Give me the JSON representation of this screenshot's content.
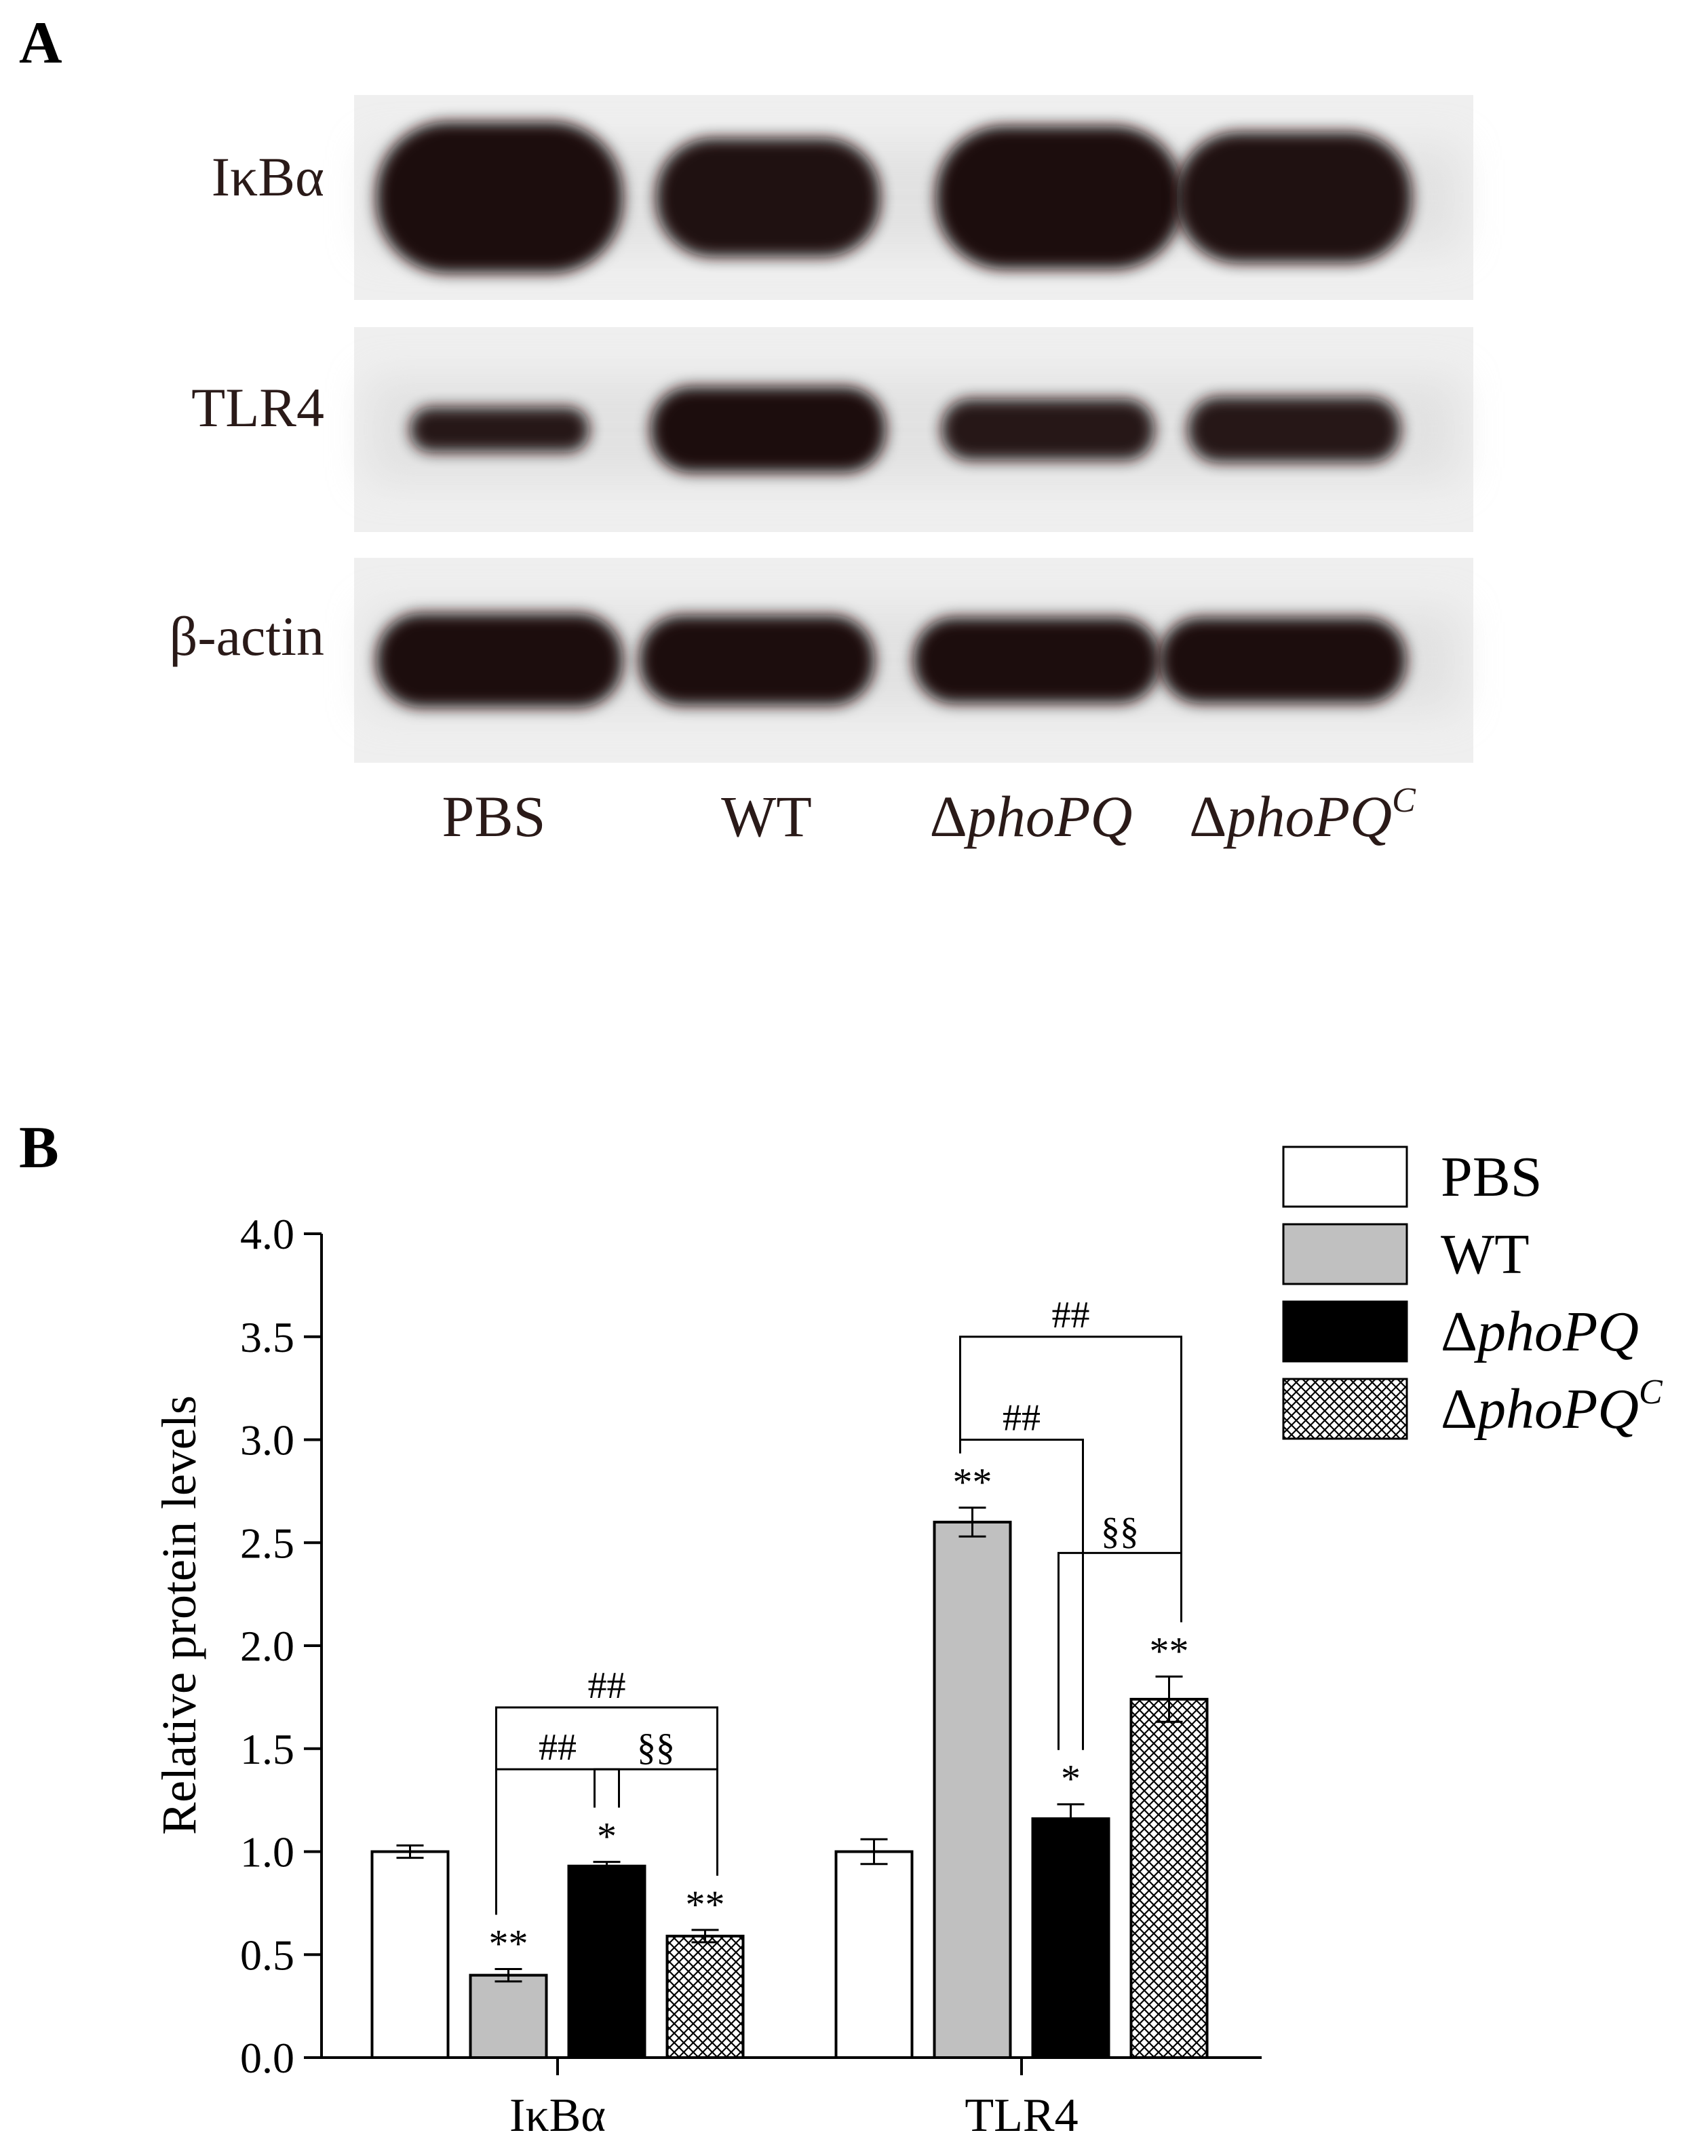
{
  "panels": {
    "a_label": "A",
    "b_label": "B"
  },
  "blot": {
    "rows": [
      {
        "label_main": "Iκ",
        "label_tail": "Bα",
        "bands": [
          {
            "cx": 0.13,
            "w": 0.22,
            "h": 0.74,
            "alpha": 1.0
          },
          {
            "cx": 0.37,
            "w": 0.2,
            "h": 0.58,
            "alpha": 0.98
          },
          {
            "cx": 0.63,
            "w": 0.22,
            "h": 0.7,
            "alpha": 1.0
          },
          {
            "cx": 0.84,
            "w": 0.21,
            "h": 0.64,
            "alpha": 0.98
          }
        ]
      },
      {
        "label_main": "TLR4",
        "label_tail": "",
        "bands": [
          {
            "cx": 0.13,
            "w": 0.16,
            "h": 0.22,
            "alpha": 0.95
          },
          {
            "cx": 0.37,
            "w": 0.21,
            "h": 0.42,
            "alpha": 1.0
          },
          {
            "cx": 0.62,
            "w": 0.19,
            "h": 0.3,
            "alpha": 0.95
          },
          {
            "cx": 0.84,
            "w": 0.19,
            "h": 0.32,
            "alpha": 0.95
          }
        ]
      },
      {
        "label_main": "β-actin",
        "label_tail": "",
        "bands": [
          {
            "cx": 0.13,
            "w": 0.22,
            "h": 0.46,
            "alpha": 1.0
          },
          {
            "cx": 0.36,
            "w": 0.21,
            "h": 0.44,
            "alpha": 1.0
          },
          {
            "cx": 0.61,
            "w": 0.22,
            "h": 0.42,
            "alpha": 1.0
          },
          {
            "cx": 0.83,
            "w": 0.22,
            "h": 0.42,
            "alpha": 1.0
          }
        ]
      }
    ],
    "lane_labels": [
      {
        "prefix": "",
        "italic": "",
        "plain": "PBS",
        "sup": ""
      },
      {
        "prefix": "",
        "italic": "",
        "plain": "WT",
        "sup": ""
      },
      {
        "prefix": "Δ",
        "italic": "phoPQ",
        "plain": "",
        "sup": ""
      },
      {
        "prefix": "Δ",
        "italic": "phoPQ",
        "plain": "",
        "sup": "C"
      }
    ]
  },
  "colors": {
    "ink": "#2a1a18",
    "band": "#1e0c0a",
    "gray_bar": "#c0c0c0",
    "black_bar": "#000000",
    "white_bar": "#ffffff"
  },
  "chart_data": {
    "type": "bar",
    "ylabel": "Relative protein levels",
    "xlabel": "",
    "ylim": [
      0,
      4.0
    ],
    "yticks": [
      "0.0",
      "0.5",
      "1.0",
      "1.5",
      "2.0",
      "2.5",
      "3.0",
      "3.5",
      "4.0"
    ],
    "categories": [
      "IκBα",
      "TLR4"
    ],
    "legend_position": "top-right",
    "series": [
      {
        "name": "PBS",
        "name_prefix": "",
        "name_italic": "",
        "name_sup": "",
        "fill": "white",
        "values": [
          1.0,
          1.0
        ],
        "errors": [
          0.03,
          0.06
        ],
        "sig": [
          "",
          ""
        ]
      },
      {
        "name": "WT",
        "name_prefix": "",
        "name_italic": "",
        "name_sup": "",
        "fill": "gray",
        "values": [
          0.4,
          2.6
        ],
        "errors": [
          0.03,
          0.07
        ],
        "sig": [
          "**",
          "**"
        ]
      },
      {
        "name": "",
        "name_prefix": "Δ",
        "name_italic": "phoPQ",
        "name_sup": "",
        "fill": "black",
        "values": [
          0.93,
          1.16
        ],
        "errors": [
          0.02,
          0.07
        ],
        "sig": [
          "*",
          "*"
        ]
      },
      {
        "name": "",
        "name_prefix": "Δ",
        "name_italic": "phoPQ",
        "name_sup": "C",
        "fill": "hatch",
        "values": [
          0.59,
          1.74
        ],
        "errors": [
          0.03,
          0.11
        ],
        "sig": [
          "**",
          "**"
        ]
      }
    ],
    "comparisons": [
      {
        "category": 0,
        "from": 1,
        "to": 2,
        "label": "##",
        "level": 1.4
      },
      {
        "category": 0,
        "from": 2,
        "to": 3,
        "label": "§§",
        "level": 1.4
      },
      {
        "category": 0,
        "from": 1,
        "to": 3,
        "label": "##",
        "level": 1.7
      },
      {
        "category": 1,
        "from": 1,
        "to": 2,
        "label": "##",
        "level": 3.0
      },
      {
        "category": 1,
        "from": 2,
        "to": 3,
        "label": "§§",
        "level": 2.45
      },
      {
        "category": 1,
        "from": 1,
        "to": 3,
        "label": "##",
        "level": 3.5
      }
    ]
  }
}
